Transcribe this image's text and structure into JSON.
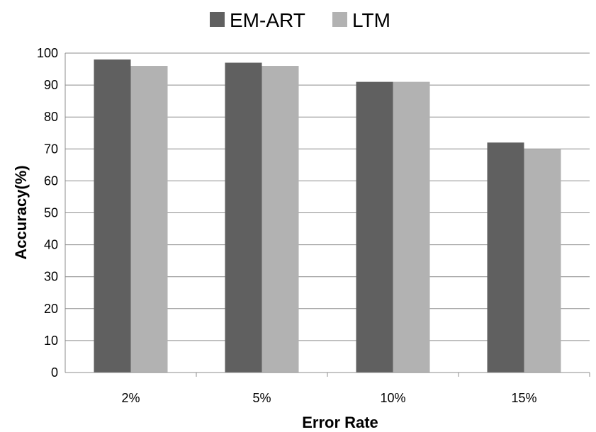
{
  "chart_data": {
    "type": "bar",
    "title": "",
    "xlabel": "Error Rate",
    "ylabel": "Accuracy(%)",
    "categories": [
      "2%",
      "5%",
      "10%",
      "15%"
    ],
    "series": [
      {
        "name": "EM-ART",
        "color": "#606060",
        "values": [
          98,
          97,
          91,
          72
        ]
      },
      {
        "name": "LTM",
        "color": "#b2b2b2",
        "values": [
          96,
          96,
          91,
          70
        ]
      }
    ],
    "ylim": [
      0,
      100
    ],
    "yticks": [
      0,
      10,
      20,
      30,
      40,
      50,
      60,
      70,
      80,
      90,
      100
    ],
    "grid": true,
    "legend_position": "top"
  }
}
